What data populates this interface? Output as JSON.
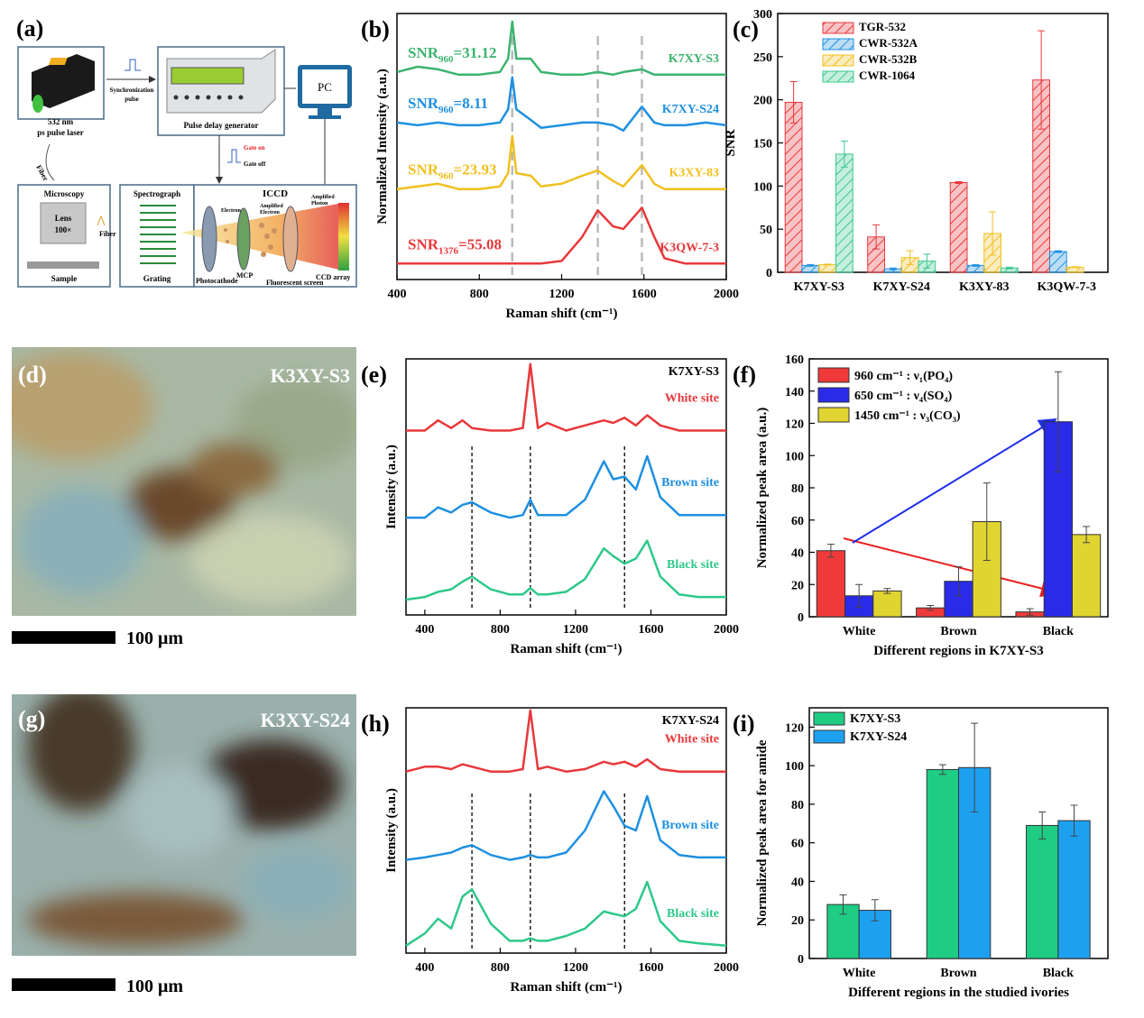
{
  "diagram": {
    "panel": "(a)",
    "texts": [
      "532 nm",
      "ps pulse laser",
      "Synchronization",
      "pulse",
      "Pulse delay generator",
      "PC",
      "Gate on",
      "Gate off",
      "Fiber",
      "Microscopy",
      "Lens",
      "100×",
      "Sample",
      "Fiber",
      "Spectrograph",
      "Grating",
      "ICCD",
      "Electron",
      "Amplified",
      "Electron",
      "Amplified",
      "Photon",
      "Photocathode",
      "MCP",
      "Fluorescent screen",
      "CCD array"
    ]
  },
  "images": [
    {
      "panel": "(d)",
      "sample": "K3XY-S3",
      "scale_bar": "100 μm"
    },
    {
      "panel": "(g)",
      "sample": "K3XY-S24",
      "scale_bar": "100 μm"
    }
  ],
  "chart_data": [
    {
      "type": "line",
      "panel": "(b)",
      "xlabel": "Raman shift (cm⁻¹)",
      "ylabel": "Normalized Intensity (a.u.)",
      "x": [
        400,
        500,
        600,
        700,
        800,
        900,
        940,
        960,
        980,
        1050,
        1100,
        1200,
        1300,
        1376,
        1450,
        1500,
        1590,
        1650,
        1700,
        1800,
        1900,
        2000
      ],
      "xlim": [
        400,
        2000
      ],
      "xticks": [
        400,
        800,
        1200,
        1600,
        2000
      ],
      "ylim": [
        0,
        10
      ],
      "reference_lines": [
        960,
        1376,
        1590
      ],
      "series": [
        {
          "name": "K7XY-S3",
          "color": "#3cb46e",
          "annotation": {
            "text": "SNR",
            "sub": "960",
            "rest": "=31.12"
          },
          "values": [
            7.8,
            8.0,
            7.9,
            7.7,
            7.7,
            7.8,
            8.3,
            9.7,
            8.3,
            8.3,
            7.8,
            7.7,
            7.7,
            7.8,
            7.7,
            7.8,
            7.9,
            7.7,
            7.7,
            7.7,
            7.7,
            7.7
          ]
        },
        {
          "name": "K7XY-S24",
          "color": "#1e90e0",
          "annotation": {
            "text": "SNR",
            "sub": "960",
            "rest": "=8.11"
          },
          "values": [
            5.9,
            5.8,
            5.9,
            5.8,
            5.8,
            5.9,
            6.4,
            7.6,
            6.4,
            6.0,
            5.7,
            5.8,
            5.9,
            5.9,
            5.8,
            5.6,
            6.5,
            5.9,
            5.8,
            5.8,
            5.9,
            5.8
          ]
        },
        {
          "name": "K3XY-83",
          "color": "#f0c020",
          "annotation": {
            "text": "SNR",
            "sub": "960",
            "rest": "=23.93"
          },
          "values": [
            3.4,
            3.5,
            3.6,
            3.4,
            3.4,
            3.5,
            4.0,
            5.4,
            4.0,
            3.9,
            3.5,
            3.6,
            3.9,
            4.1,
            3.7,
            3.5,
            4.3,
            3.6,
            3.4,
            3.4,
            3.4,
            3.4
          ]
        },
        {
          "name": "K3QW-7-3",
          "color": "#e8383c",
          "annotation": {
            "text": "SNR",
            "sub": "1376",
            "rest": "=55.08"
          },
          "values": [
            0.6,
            0.6,
            0.6,
            0.6,
            0.6,
            0.6,
            0.6,
            0.6,
            0.6,
            0.6,
            0.6,
            0.7,
            1.6,
            2.6,
            2.0,
            1.9,
            2.7,
            1.6,
            0.8,
            0.6,
            0.6,
            0.6
          ]
        }
      ]
    },
    {
      "type": "bar",
      "panel": "(c)",
      "ylabel": "SNR",
      "categories": [
        "K7XY-S3",
        "K7XY-S24",
        "K3XY-83",
        "K3QW-7-3"
      ],
      "ylim": [
        0,
        300
      ],
      "yticks": [
        0,
        50,
        100,
        150,
        200,
        250,
        300
      ],
      "hatch": true,
      "legend": "upper left",
      "series": [
        {
          "name": "TGR-532",
          "color": "#e8383c",
          "values": [
            197,
            41,
            104,
            223
          ],
          "errors": [
            24,
            14,
            1,
            57
          ]
        },
        {
          "name": "CWR-532A",
          "color": "#1e90e0",
          "values": [
            8,
            4,
            8,
            24
          ],
          "errors": [
            1,
            1,
            1,
            1
          ]
        },
        {
          "name": "CWR-532B",
          "color": "#f0c020",
          "values": [
            9,
            17,
            45,
            6
          ],
          "errors": [
            0.5,
            8,
            25,
            0.5
          ]
        },
        {
          "name": "CWR-1064",
          "color": "#3cc890",
          "values": [
            137,
            13,
            5,
            null
          ],
          "errors": [
            15,
            8,
            1,
            null
          ]
        }
      ]
    },
    {
      "type": "line",
      "panel": "(e)",
      "sample": "K7XY-S3",
      "xlabel": "Raman shift (cm⁻¹)",
      "ylabel": "Intensity (a.u.)",
      "x": [
        300,
        400,
        470,
        540,
        600,
        650,
        750,
        850,
        920,
        960,
        1000,
        1050,
        1150,
        1250,
        1350,
        1400,
        1460,
        1520,
        1580,
        1650,
        1750,
        1850,
        2000
      ],
      "xlim": [
        300,
        2000
      ],
      "xticks": [
        400,
        800,
        1200,
        1600,
        2000
      ],
      "ylim": [
        0,
        10
      ],
      "reference_lines": [
        650,
        960,
        1460
      ],
      "series": [
        {
          "name": "White site",
          "color": "#e8383c",
          "values": [
            7.2,
            7.2,
            7.6,
            7.3,
            7.6,
            7.3,
            7.2,
            7.2,
            7.3,
            9.8,
            7.3,
            7.5,
            7.2,
            7.4,
            7.6,
            7.5,
            7.7,
            7.4,
            7.8,
            7.4,
            7.2,
            7.2,
            7.2
          ]
        },
        {
          "name": "Brown site",
          "color": "#1e90e0",
          "values": [
            3.8,
            3.8,
            4.2,
            4.0,
            4.3,
            4.4,
            4.0,
            3.8,
            3.9,
            4.5,
            3.9,
            3.9,
            3.9,
            4.5,
            6.0,
            5.3,
            5.4,
            4.9,
            6.2,
            4.6,
            3.9,
            3.9,
            3.9
          ]
        },
        {
          "name": "Black site",
          "color": "#2ec88a",
          "values": [
            0.6,
            0.7,
            0.9,
            1.0,
            1.3,
            1.5,
            1.0,
            0.8,
            0.8,
            1.05,
            0.8,
            0.8,
            0.9,
            1.4,
            2.6,
            2.3,
            2.0,
            2.2,
            2.9,
            1.5,
            0.8,
            0.7,
            0.7
          ]
        }
      ]
    },
    {
      "type": "bar",
      "panel": "(f)",
      "xlabel": "Different regions in K7XY-S3",
      "ylabel": "Normalized peak area (a.u.)",
      "categories": [
        "White",
        "Brown",
        "Black"
      ],
      "ylim": [
        0,
        160
      ],
      "yticks": [
        0,
        20,
        40,
        60,
        80,
        100,
        120,
        140,
        160
      ],
      "hatch": false,
      "legend": "upper left",
      "series": [
        {
          "name": "960 cm⁻¹ : ν₁(PO₄)",
          "color": "#f03a3a",
          "values": [
            41,
            5.5,
            3
          ],
          "errors": [
            4,
            1.5,
            2
          ]
        },
        {
          "name": "650 cm⁻¹ : ν₄(SO₄)",
          "color": "#2a2ae8",
          "values": [
            13,
            22,
            121
          ],
          "errors": [
            7,
            9,
            31
          ]
        },
        {
          "name": "1450 cm⁻¹ : ν₃(CO₃)",
          "color": "#e0d430",
          "values": [
            16,
            59,
            51
          ],
          "errors": [
            1.5,
            24,
            5
          ]
        }
      ]
    },
    {
      "type": "line",
      "panel": "(h)",
      "sample": "K7XY-S24",
      "xlabel": "Raman shift (cm⁻¹)",
      "ylabel": "Intensity (a.u.)",
      "x": [
        300,
        400,
        470,
        540,
        600,
        650,
        750,
        850,
        920,
        960,
        1000,
        1050,
        1150,
        1250,
        1350,
        1400,
        1460,
        1520,
        1580,
        1650,
        1750,
        1850,
        2000
      ],
      "xlim": [
        300,
        2000
      ],
      "xticks": [
        400,
        800,
        1200,
        1600,
        2000
      ],
      "ylim": [
        0,
        10
      ],
      "reference_lines": [
        650,
        960,
        1460
      ],
      "series": [
        {
          "name": "White site",
          "color": "#e8383c",
          "values": [
            7.4,
            7.6,
            7.6,
            7.5,
            7.7,
            7.6,
            7.4,
            7.4,
            7.5,
            9.9,
            7.5,
            7.6,
            7.4,
            7.5,
            7.8,
            7.7,
            7.8,
            7.6,
            7.9,
            7.5,
            7.4,
            7.4,
            7.4
          ]
        },
        {
          "name": "Brown site",
          "color": "#1e90e0",
          "values": [
            3.8,
            3.9,
            4.0,
            4.1,
            4.3,
            4.4,
            4.0,
            3.8,
            3.9,
            4.0,
            3.9,
            3.9,
            4.1,
            5.0,
            6.6,
            6.0,
            5.2,
            5.0,
            6.4,
            4.6,
            4.0,
            3.9,
            3.9
          ]
        },
        {
          "name": "Black site",
          "color": "#2ec88a",
          "values": [
            0.3,
            0.8,
            1.4,
            1.0,
            2.3,
            2.6,
            1.2,
            0.5,
            0.5,
            0.6,
            0.5,
            0.5,
            0.7,
            1.0,
            1.7,
            1.6,
            1.5,
            1.8,
            2.9,
            1.3,
            0.5,
            0.4,
            0.3
          ]
        }
      ]
    },
    {
      "type": "bar",
      "panel": "(i)",
      "xlabel": "Different regions in the studied ivories",
      "ylabel": "Normalized peak area for amide",
      "categories": [
        "White",
        "Brown",
        "Black"
      ],
      "ylim": [
        0,
        130
      ],
      "yticks": [
        0,
        20,
        40,
        60,
        80,
        100,
        120
      ],
      "hatch": false,
      "legend": "upper left",
      "series": [
        {
          "name": "K7XY-S3",
          "color": "#1fcc84",
          "values": [
            28,
            98,
            69
          ],
          "errors": [
            5,
            2.5,
            7
          ]
        },
        {
          "name": "K7XY-S24",
          "color": "#1ea0f0",
          "values": [
            25,
            99,
            71.5
          ],
          "errors": [
            5.5,
            23,
            8
          ]
        }
      ]
    }
  ]
}
